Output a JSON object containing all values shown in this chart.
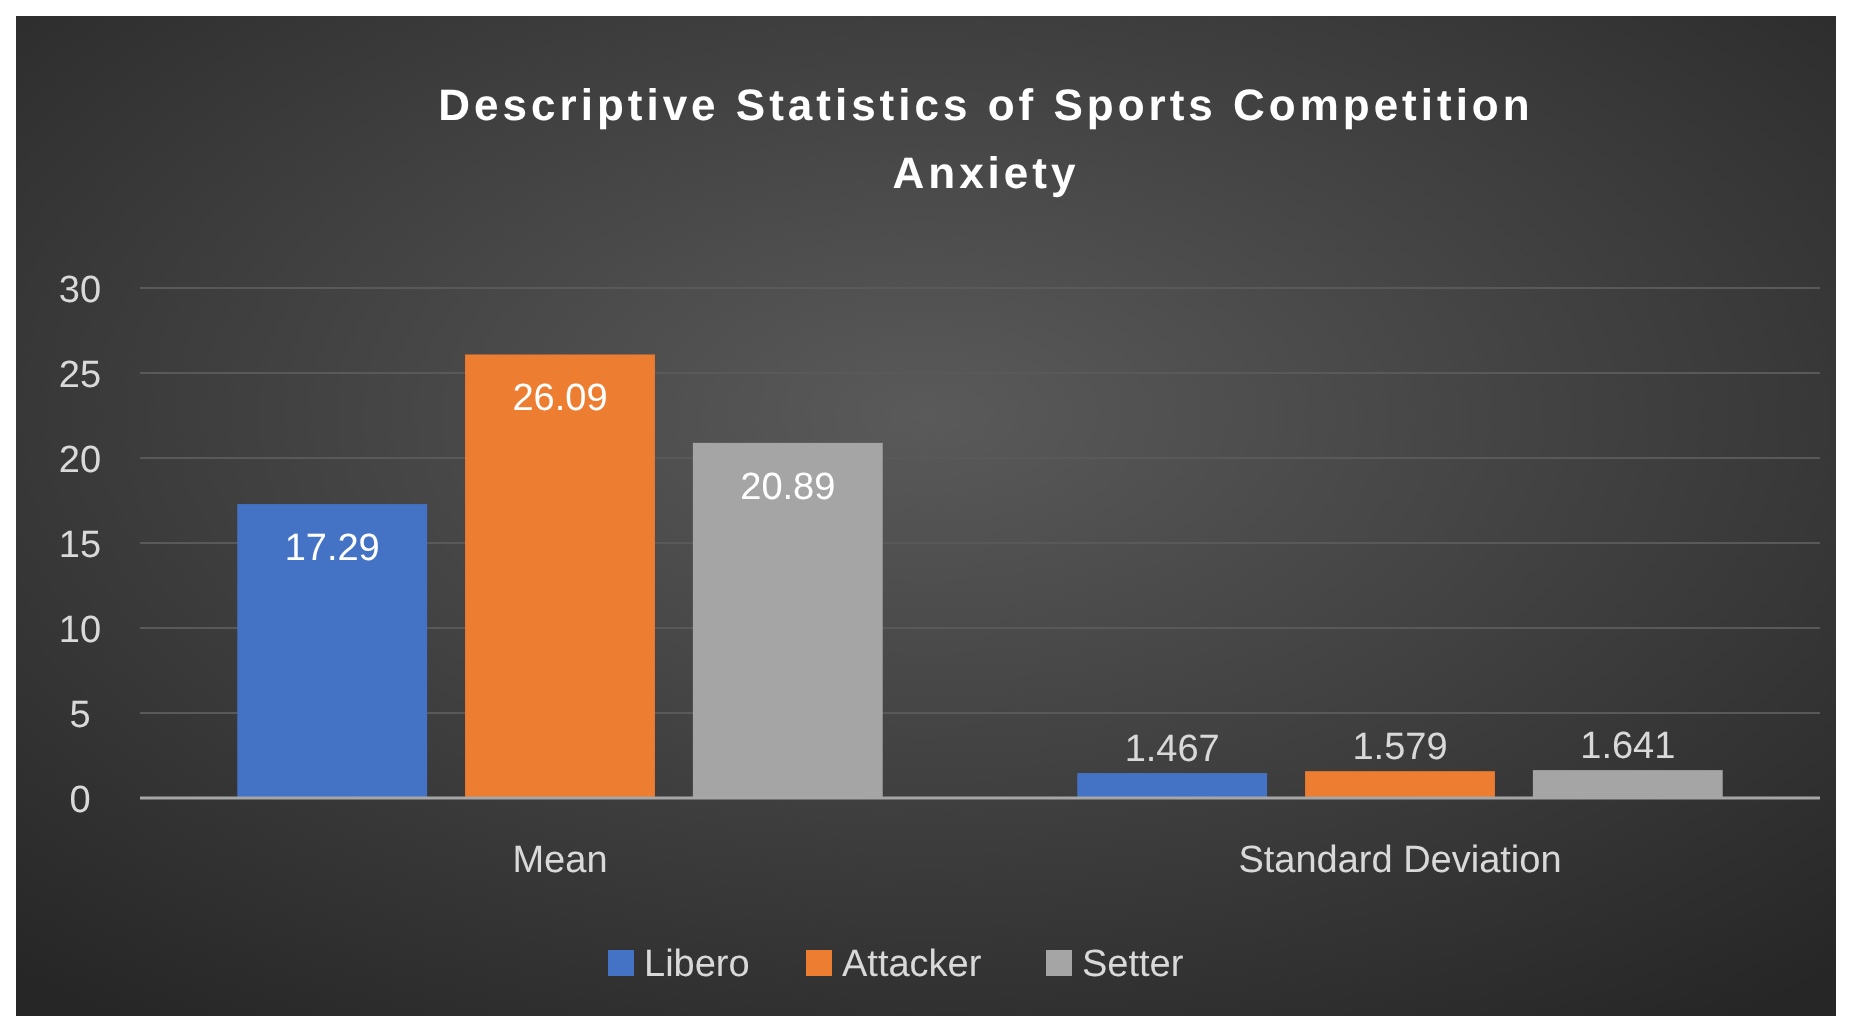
{
  "chart_data": {
    "type": "bar",
    "title": "Descriptive Statistics of Sports Competition Anxiety",
    "categories": [
      "Mean",
      "Standard Deviation"
    ],
    "series": [
      {
        "name": "Libero",
        "color": "#4472c4",
        "values": [
          17.29,
          1.467
        ]
      },
      {
        "name": "Attacker",
        "color": "#ed7d31",
        "values": [
          26.09,
          1.579
        ]
      },
      {
        "name": "Setter",
        "color": "#a5a5a5",
        "values": [
          20.89,
          1.641
        ]
      }
    ],
    "ylim": [
      0,
      30
    ],
    "yticks": [
      0,
      5,
      10,
      15,
      20,
      25,
      30
    ],
    "grid": "y",
    "legend": "bottom",
    "data_labels": true
  }
}
